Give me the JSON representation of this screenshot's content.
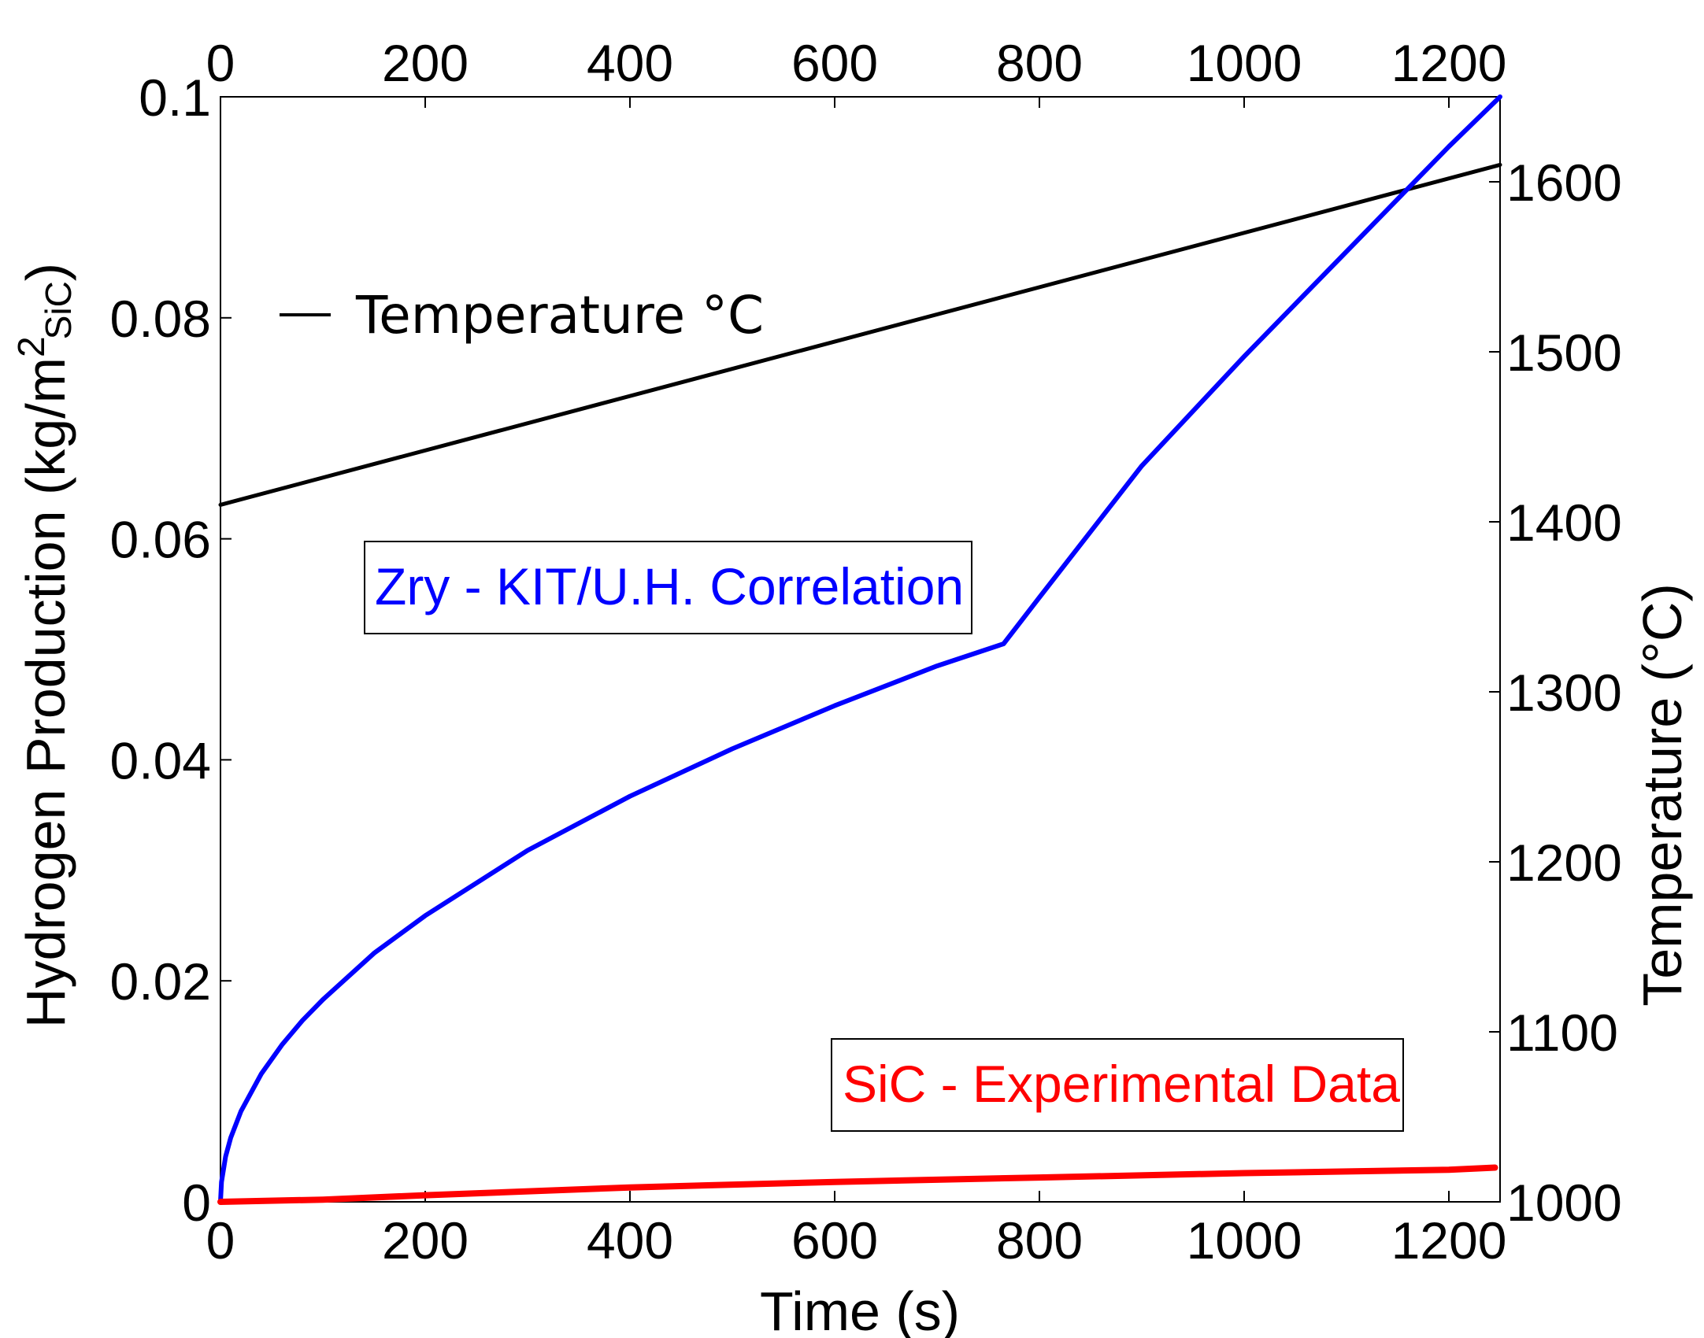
{
  "chart_data": {
    "type": "line",
    "x": {
      "label": "Time (s)",
      "range": [
        0,
        1250
      ],
      "ticks": [
        "0",
        "200",
        "400",
        "600",
        "800",
        "1000",
        "1200"
      ]
    },
    "x_top": {
      "range": [
        0,
        1250
      ],
      "ticks": [
        "0",
        "200",
        "400",
        "600",
        "800",
        "1000",
        "1200"
      ]
    },
    "y_left": {
      "label_main": "Hydrogen Production (kg/m",
      "label_sup": "2",
      "label_sub": "SiC",
      "label_close": ")",
      "range": [
        0,
        0.1
      ],
      "ticks": [
        "0",
        "0.02",
        "0.04",
        "0.06",
        "0.08",
        "0.1"
      ]
    },
    "y_right": {
      "label": "Temperature (°C)",
      "range": [
        1000,
        1650
      ],
      "ticks": [
        "1000",
        "1100",
        "1200",
        "1300",
        "1400",
        "1500",
        "1600"
      ]
    },
    "legend": {
      "position": "top-left",
      "entries": [
        {
          "label": "Temperature °C",
          "color": "#000000"
        }
      ]
    },
    "annotations": [
      {
        "text": "Zry - KIT/U.H. Correlation",
        "color": "#0000ff",
        "series": "zry"
      },
      {
        "text": "SiC - Experimental Data",
        "color": "#ff0000",
        "series": "sic"
      }
    ],
    "series": [
      {
        "key": "temperature",
        "name": "Temperature °C",
        "axis": "right",
        "color": "#000000",
        "x": [
          0,
          1250
        ],
        "y": [
          1410,
          1610
        ]
      },
      {
        "key": "zry",
        "axis": "left",
        "color": "#0000ff",
        "x": [
          0,
          1,
          5,
          10,
          20,
          40,
          60,
          80,
          100,
          150,
          200,
          300,
          400,
          500,
          600,
          700,
          765,
          800,
          900,
          1000,
          1100,
          1200,
          1250
        ],
        "y": [
          0,
          0.0018,
          0.0041,
          0.0058,
          0.0082,
          0.0116,
          0.0142,
          0.0164,
          0.0183,
          0.0225,
          0.0259,
          0.0318,
          0.0367,
          0.041,
          0.0449,
          0.0485,
          0.0505,
          0.0547,
          0.0666,
          0.0765,
          0.086,
          0.0955,
          0.1
        ]
      },
      {
        "key": "sic",
        "axis": "left",
        "color": "#ff0000",
        "x": [
          0,
          100,
          200,
          400,
          600,
          800,
          1000,
          1200,
          1245
        ],
        "y": [
          0,
          0.0002,
          0.0006,
          0.0013,
          0.0018,
          0.0022,
          0.0026,
          0.0029,
          0.0031
        ]
      }
    ]
  }
}
